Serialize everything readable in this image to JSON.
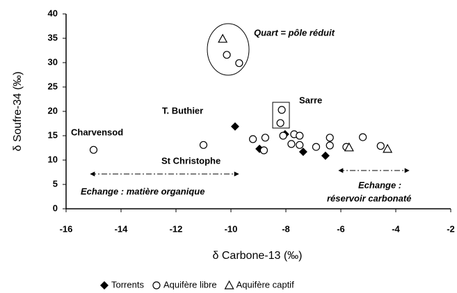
{
  "chart_data": {
    "type": "scatter",
    "x_label": "δ Carbone-13 (‰)",
    "y_label": "δ Soufre-34 (‰)",
    "xlim": [
      -16,
      -2
    ],
    "xticks": [
      -16,
      -14,
      -12,
      -10,
      -8,
      -6,
      -4,
      -2
    ],
    "ylim": [
      0,
      40
    ],
    "yticks": [
      0,
      5,
      10,
      15,
      20,
      25,
      30,
      35,
      40
    ],
    "grid": false,
    "annotations": [
      "Quart = pôle réduit",
      "Sarre",
      "T. Buthier",
      "Charvensod",
      "St Christophe",
      "Echange : matière organique",
      "Echange :",
      "réservoir carbonaté"
    ],
    "series": [
      {
        "name": "Torrents",
        "marker": "diamond",
        "color": "#000000",
        "x": [
          -9.85,
          -8.96,
          -8.03,
          -7.37,
          -6.56
        ],
        "values": [
          16.9,
          12.3,
          15.3,
          11.7,
          10.9
        ]
      },
      {
        "name": "Aquifère libre",
        "marker": "circle",
        "color": "#000000",
        "x": [
          -15.0,
          -11.0,
          -10.15,
          -9.7,
          -9.2,
          -8.8,
          -8.75,
          -8.15,
          -8.2,
          -8.1,
          -7.8,
          -7.7,
          -7.5,
          -7.5,
          -6.9,
          -6.4,
          -6.4,
          -5.8,
          -5.2,
          -4.55
        ],
        "values": [
          12.1,
          13.1,
          31.6,
          29.9,
          14.3,
          12.0,
          14.6,
          20.3,
          17.6,
          15.0,
          13.3,
          15.3,
          15.0,
          13.1,
          12.7,
          14.6,
          13.0,
          12.7,
          14.7,
          12.9
        ]
      },
      {
        "name": "Aquifère captif",
        "marker": "triangle",
        "color": "#000000",
        "x": [
          -10.3,
          -5.7,
          -4.3
        ],
        "values": [
          34.9,
          12.6,
          12.3
        ]
      }
    ]
  }
}
